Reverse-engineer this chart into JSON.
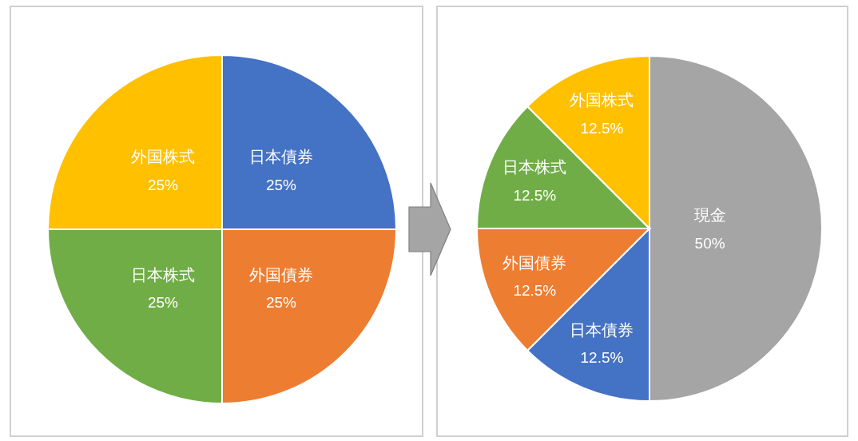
{
  "chart_data": [
    {
      "type": "pie",
      "categories": [
        "日本債券",
        "外国債券",
        "日本株式",
        "外国株式"
      ],
      "values": [
        25,
        25,
        25,
        25
      ],
      "colors": [
        "#4472c4",
        "#ed7d31",
        "#70ad47",
        "#ffc000"
      ],
      "value_labels": [
        "25%",
        "25%",
        "25%",
        "25%"
      ]
    },
    {
      "type": "pie",
      "categories": [
        "現金",
        "日本債券",
        "外国債券",
        "日本株式",
        "外国株式"
      ],
      "values": [
        50,
        12.5,
        12.5,
        12.5,
        12.5
      ],
      "colors": [
        "#a5a5a5",
        "#4472c4",
        "#ed7d31",
        "#70ad47",
        "#ffc000"
      ],
      "value_labels": [
        "50%",
        "12.5%",
        "12.5%",
        "12.5%",
        "12.5%"
      ]
    }
  ]
}
